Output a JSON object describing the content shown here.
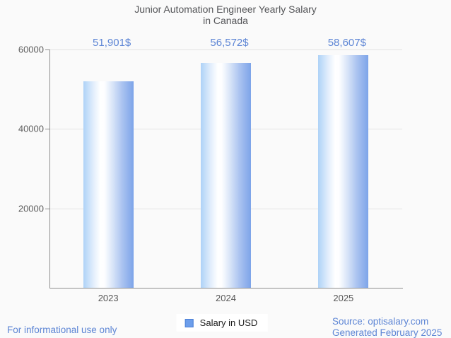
{
  "title": {
    "line1": "Junior Automation Engineer Yearly Salary",
    "line2": "in Canada"
  },
  "chart_data": {
    "type": "bar",
    "title": "Junior Automation Engineer Yearly Salary in Canada",
    "categories": [
      "2023",
      "2024",
      "2025"
    ],
    "series": [
      {
        "name": "Salary in USD",
        "values": [
          51901,
          56572,
          58607
        ]
      }
    ],
    "value_labels": [
      "51,901$",
      "56,572$",
      "58,607$"
    ],
    "xlabel": "",
    "ylabel": "",
    "ylim": [
      0,
      60000
    ],
    "yticks": [
      20000,
      40000,
      60000
    ],
    "ytick_labels": [
      "20000",
      "40000",
      "60000"
    ],
    "grid": true,
    "legend_position": "bottom",
    "bar_gradient": [
      "#aed2f7",
      "#ffffff",
      "#7da4e9"
    ]
  },
  "legend": {
    "label": "Salary in USD",
    "swatch_color": "#6d9eeb"
  },
  "footer": {
    "disclaimer": "For informational use only",
    "source": "Source: optisalary.com",
    "generated": "Generated February 2025"
  },
  "colors": {
    "background": "#fafafa",
    "title_text": "#555659",
    "value_label_text": "#5e86d5",
    "axis_line": "#8f8f8f",
    "gridline": "#e3e3e3",
    "tick_text": "#5c5c5c",
    "footer_text": "#5e86d5",
    "legend_text": "#1d1d1d"
  }
}
